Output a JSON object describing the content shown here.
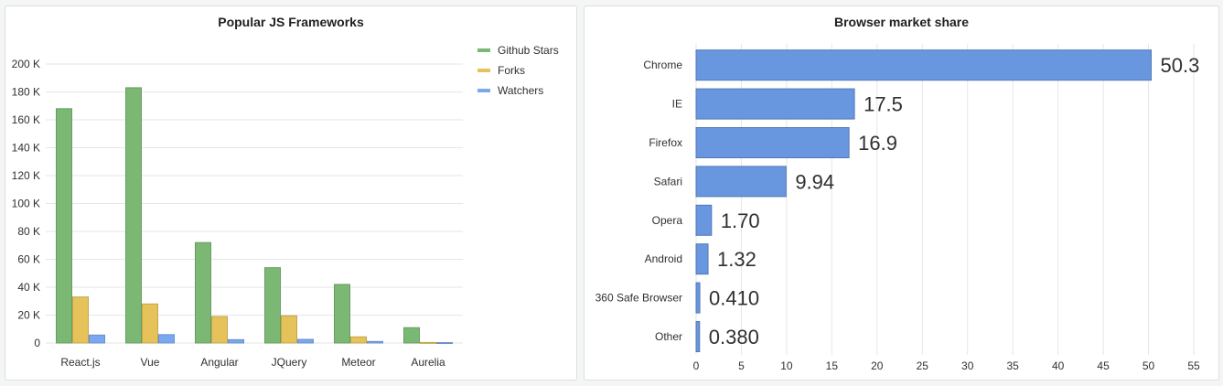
{
  "chart_data": [
    {
      "type": "bar",
      "title": "Popular JS Frameworks",
      "categories": [
        "React.js",
        "Vue",
        "Angular",
        "JQuery",
        "Meteor",
        "Aurelia"
      ],
      "series": [
        {
          "name": "Github Stars",
          "color": "#7ab874",
          "values": [
            168000,
            183000,
            72000,
            54000,
            42000,
            11000
          ]
        },
        {
          "name": "Forks",
          "color": "#e5c35a",
          "values": [
            33000,
            28000,
            19000,
            19500,
            4400,
            400
          ]
        },
        {
          "name": "Watchers",
          "color": "#7aa8f0",
          "values": [
            5700,
            6000,
            2400,
            2600,
            1100,
            300
          ]
        }
      ],
      "ylim": [
        0,
        200000
      ],
      "yticks": [
        "0",
        "20 K",
        "40 K",
        "60 K",
        "80 K",
        "100 K",
        "120 K",
        "140 K",
        "160 K",
        "180 K",
        "200 K"
      ],
      "grid": true,
      "legend": "top-right"
    },
    {
      "type": "bar",
      "orientation": "horizontal",
      "title": "Browser market share",
      "categories": [
        "Chrome",
        "IE",
        "Firefox",
        "Safari",
        "Opera",
        "Android",
        "360 Safe Browser",
        "Other"
      ],
      "values": [
        50.3,
        17.5,
        16.9,
        9.94,
        1.7,
        1.32,
        0.41,
        0.38
      ],
      "value_labels": [
        "50.3",
        "17.5",
        "16.9",
        "9.94",
        "1.70",
        "1.32",
        "0.410",
        "0.380"
      ],
      "color": "#6897e0",
      "xlim": [
        0,
        55
      ],
      "xticks": [
        "0",
        "5",
        "10",
        "15",
        "20",
        "25",
        "30",
        "35",
        "40",
        "45",
        "50",
        "55"
      ],
      "grid": true
    }
  ]
}
